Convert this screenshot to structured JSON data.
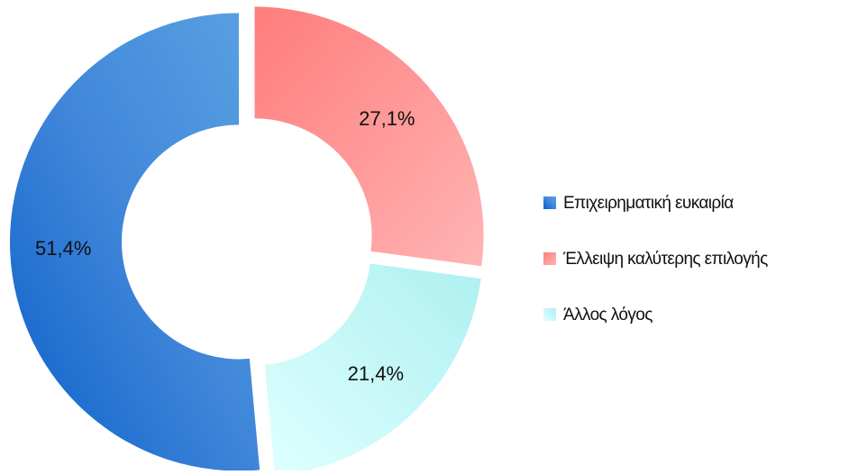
{
  "chart_data": {
    "type": "donut",
    "categories": [
      "Επιχειρηματική ευκαιρία",
      "Έλλειψη καλύτερης επιλογής",
      "Άλλος λόγος"
    ],
    "values": [
      51.4,
      27.1,
      21.4
    ],
    "value_labels": [
      "51,4%",
      "27,1%",
      "21,4%"
    ],
    "colors": [
      "#2f74d0",
      "#ff8585",
      "#bff5f5"
    ],
    "legend": "right"
  }
}
